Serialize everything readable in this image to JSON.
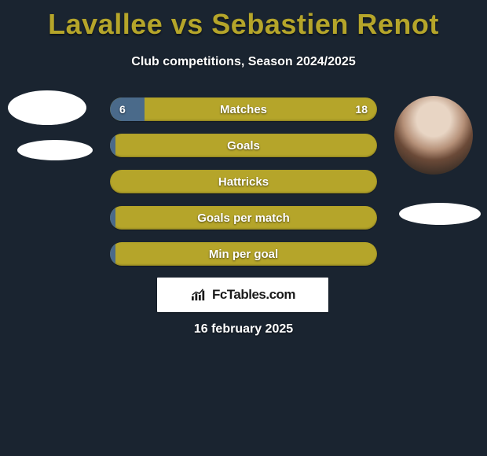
{
  "header": {
    "title": "Lavallee vs Sebastien Renot",
    "subtitle": "Club competitions, Season 2024/2025",
    "title_color": "#b5a52a",
    "title_fontsize": 36
  },
  "background_color": "#1a2430",
  "players": {
    "left": {
      "name": "Lavallee"
    },
    "right": {
      "name": "Sebastien Renot"
    }
  },
  "bars": {
    "left_color": "#4a6a8a",
    "right_color": "#b5a52a",
    "label_color": "#ffffff",
    "rows": [
      {
        "label": "Matches",
        "left_val": "6",
        "right_val": "18",
        "left_pct": 13
      },
      {
        "label": "Goals",
        "left_val": "",
        "right_val": "",
        "left_pct": 2
      },
      {
        "label": "Hattricks",
        "left_val": "",
        "right_val": "",
        "left_pct": 0
      },
      {
        "label": "Goals per match",
        "left_val": "",
        "right_val": "",
        "left_pct": 2
      },
      {
        "label": "Min per goal",
        "left_val": "",
        "right_val": "",
        "left_pct": 2
      }
    ]
  },
  "brand": {
    "text": "FcTables.com"
  },
  "date": "16 february 2025"
}
